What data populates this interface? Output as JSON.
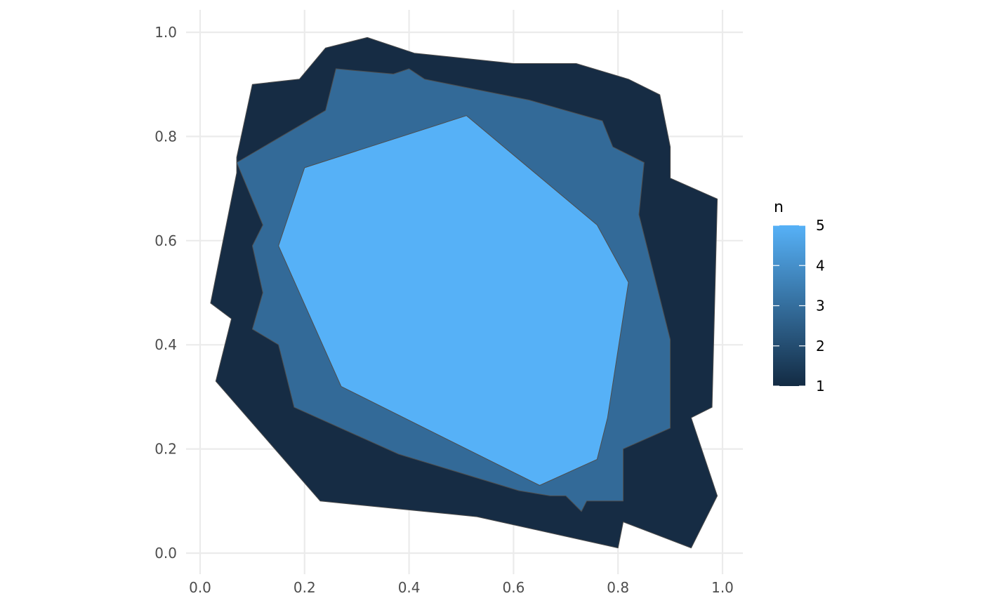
{
  "chart_data": {
    "type": "area",
    "title": "",
    "xlabel": "",
    "ylabel": "",
    "xlim": [
      0.0,
      1.0
    ],
    "ylim": [
      0.0,
      1.0
    ],
    "x_ticks": [
      "0.0",
      "0.2",
      "0.4",
      "0.6",
      "0.8",
      "1.0"
    ],
    "y_ticks": [
      "0.0",
      "0.2",
      "0.4",
      "0.6",
      "0.8",
      "1.0"
    ],
    "grid": true,
    "legend": {
      "title": "n",
      "position": "right",
      "range": [
        1,
        5
      ],
      "labels": [
        "1",
        "2",
        "3",
        "4",
        "5"
      ],
      "low_color": "#132B43",
      "high_color": "#56B1F7"
    },
    "series": [
      {
        "n": 1,
        "fill": "#162C44",
        "points": [
          [
            0.1,
            0.9
          ],
          [
            0.19,
            0.91
          ],
          [
            0.24,
            0.97
          ],
          [
            0.32,
            0.99
          ],
          [
            0.41,
            0.96
          ],
          [
            0.6,
            0.94
          ],
          [
            0.72,
            0.94
          ],
          [
            0.82,
            0.91
          ],
          [
            0.88,
            0.88
          ],
          [
            0.9,
            0.78
          ],
          [
            0.9,
            0.72
          ],
          [
            0.99,
            0.68
          ],
          [
            0.98,
            0.28
          ],
          [
            0.94,
            0.26
          ],
          [
            0.99,
            0.11
          ],
          [
            0.94,
            0.01
          ],
          [
            0.81,
            0.06
          ],
          [
            0.8,
            0.01
          ],
          [
            0.53,
            0.07
          ],
          [
            0.23,
            0.1
          ],
          [
            0.03,
            0.33
          ],
          [
            0.06,
            0.45
          ],
          [
            0.02,
            0.48
          ],
          [
            0.07,
            0.73
          ],
          [
            0.07,
            0.76
          ]
        ]
      },
      {
        "n": 3,
        "fill": "#336A98",
        "points": [
          [
            0.07,
            0.75
          ],
          [
            0.24,
            0.85
          ],
          [
            0.26,
            0.93
          ],
          [
            0.37,
            0.92
          ],
          [
            0.4,
            0.93
          ],
          [
            0.43,
            0.91
          ],
          [
            0.63,
            0.87
          ],
          [
            0.77,
            0.83
          ],
          [
            0.79,
            0.78
          ],
          [
            0.85,
            0.75
          ],
          [
            0.84,
            0.65
          ],
          [
            0.9,
            0.41
          ],
          [
            0.9,
            0.24
          ],
          [
            0.81,
            0.2
          ],
          [
            0.81,
            0.1
          ],
          [
            0.74,
            0.1
          ],
          [
            0.73,
            0.08
          ],
          [
            0.7,
            0.11
          ],
          [
            0.67,
            0.11
          ],
          [
            0.61,
            0.12
          ],
          [
            0.38,
            0.19
          ],
          [
            0.18,
            0.28
          ],
          [
            0.15,
            0.4
          ],
          [
            0.1,
            0.43
          ],
          [
            0.12,
            0.5
          ],
          [
            0.1,
            0.59
          ],
          [
            0.12,
            0.63
          ]
        ]
      },
      {
        "n": 5,
        "fill": "#56B1F7",
        "points": [
          [
            0.2,
            0.74
          ],
          [
            0.51,
            0.84
          ],
          [
            0.76,
            0.63
          ],
          [
            0.82,
            0.52
          ],
          [
            0.78,
            0.26
          ],
          [
            0.76,
            0.18
          ],
          [
            0.65,
            0.13
          ],
          [
            0.27,
            0.32
          ],
          [
            0.15,
            0.59
          ]
        ]
      }
    ]
  }
}
